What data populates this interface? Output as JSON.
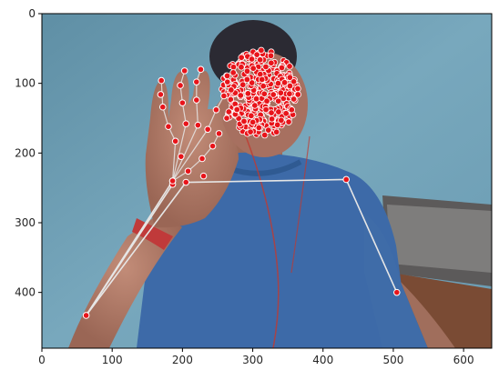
{
  "chart_data": {
    "type": "scatter",
    "title": "",
    "xlabel": "",
    "ylabel": "",
    "xlim": [
      0,
      640
    ],
    "ylim": [
      480,
      0
    ],
    "x_ticks": [
      0,
      100,
      200,
      300,
      400,
      500,
      600
    ],
    "y_ticks": [
      0,
      100,
      200,
      300,
      400
    ],
    "grid": false,
    "background_image": "webcam-photo",
    "colors": {
      "wall": "#6f9fb4",
      "shirt": "#3d6aa8",
      "skin": "#b07a66",
      "marker_fill": "#e8141a",
      "marker_edge": "#ffffff",
      "skeleton_line": "#e6e6e6"
    },
    "pose_points": [
      {
        "name": "left-shoulder",
        "x": 205,
        "y": 242
      },
      {
        "name": "right-shoulder",
        "x": 433,
        "y": 238
      },
      {
        "name": "left-elbow",
        "x": 63,
        "y": 433
      },
      {
        "name": "right-elbow",
        "x": 505,
        "y": 400
      },
      {
        "name": "left-wrist",
        "x": 186,
        "y": 240
      },
      {
        "name": "left-wrist-2",
        "x": 186,
        "y": 245
      }
    ],
    "pose_edges": [
      [
        0,
        1
      ],
      [
        0,
        2
      ],
      [
        1,
        3
      ],
      [
        2,
        4
      ],
      [
        2,
        5
      ]
    ],
    "hand_points": [
      {
        "x": 186,
        "y": 240
      },
      {
        "x": 208,
        "y": 226
      },
      {
        "x": 228,
        "y": 208
      },
      {
        "x": 243,
        "y": 190
      },
      {
        "x": 252,
        "y": 172
      },
      {
        "x": 190,
        "y": 183
      },
      {
        "x": 180,
        "y": 162
      },
      {
        "x": 172,
        "y": 134
      },
      {
        "x": 170,
        "y": 96
      },
      {
        "x": 205,
        "y": 158
      },
      {
        "x": 200,
        "y": 128
      },
      {
        "x": 197,
        "y": 103
      },
      {
        "x": 203,
        "y": 82
      },
      {
        "x": 222,
        "y": 160
      },
      {
        "x": 220,
        "y": 124
      },
      {
        "x": 220,
        "y": 98
      },
      {
        "x": 226,
        "y": 80
      },
      {
        "x": 236,
        "y": 166
      },
      {
        "x": 248,
        "y": 138
      },
      {
        "x": 259,
        "y": 118
      },
      {
        "x": 264,
        "y": 98
      },
      {
        "x": 169,
        "y": 116
      },
      {
        "x": 198,
        "y": 205
      },
      {
        "x": 230,
        "y": 233
      },
      {
        "x": 263,
        "y": 150
      }
    ],
    "hand_edges": [
      [
        0,
        1
      ],
      [
        1,
        2
      ],
      [
        2,
        3
      ],
      [
        3,
        4
      ],
      [
        0,
        5
      ],
      [
        5,
        6
      ],
      [
        6,
        7
      ],
      [
        7,
        8
      ],
      [
        0,
        9
      ],
      [
        9,
        10
      ],
      [
        10,
        11
      ],
      [
        11,
        12
      ],
      [
        0,
        13
      ],
      [
        13,
        14
      ],
      [
        14,
        15
      ],
      [
        15,
        16
      ],
      [
        0,
        17
      ],
      [
        17,
        18
      ],
      [
        18,
        19
      ],
      [
        19,
        20
      ]
    ],
    "face_mesh": {
      "center_x": 310,
      "center_y": 114,
      "radius_x": 55,
      "radius_y": 63,
      "point_count": 360
    }
  }
}
